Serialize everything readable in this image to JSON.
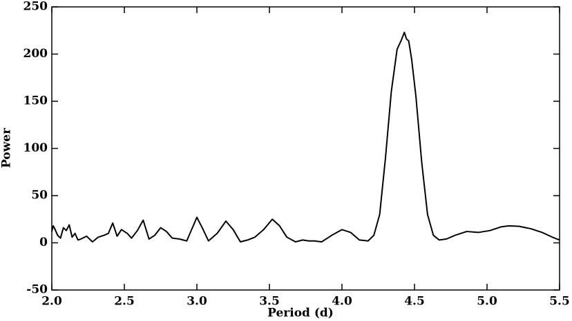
{
  "chart_data": {
    "type": "line",
    "xlabel": "Period (d)",
    "ylabel": "Power",
    "x": [
      2.0,
      2.01,
      2.02,
      2.04,
      2.06,
      2.08,
      2.1,
      2.12,
      2.14,
      2.16,
      2.18,
      2.2,
      2.24,
      2.28,
      2.32,
      2.36,
      2.39,
      2.42,
      2.45,
      2.48,
      2.52,
      2.55,
      2.59,
      2.63,
      2.67,
      2.71,
      2.75,
      2.79,
      2.83,
      2.88,
      2.93,
      3.0,
      3.04,
      3.08,
      3.14,
      3.2,
      3.25,
      3.3,
      3.35,
      3.4,
      3.46,
      3.52,
      3.57,
      3.62,
      3.68,
      3.73,
      3.77,
      3.81,
      3.86,
      3.93,
      4.0,
      4.06,
      4.12,
      4.18,
      4.22,
      4.26,
      4.3,
      4.34,
      4.38,
      4.41,
      4.43,
      4.445,
      4.46,
      4.48,
      4.51,
      4.55,
      4.59,
      4.63,
      4.67,
      4.72,
      4.78,
      4.86,
      4.94,
      5.02,
      5.1,
      5.15,
      5.22,
      5.3,
      5.38,
      5.45,
      5.5
    ],
    "series": [
      {
        "color": "#000000",
        "values": [
          12,
          18,
          15,
          8,
          5,
          16,
          13,
          19,
          6,
          10,
          3,
          4,
          7,
          1,
          6,
          8,
          10,
          21,
          7,
          14,
          10,
          5,
          13,
          24,
          4,
          8,
          16,
          12,
          5,
          4,
          2,
          27,
          15,
          2,
          10,
          23,
          14,
          1,
          3,
          6,
          14,
          25,
          18,
          6,
          1,
          3,
          2,
          2,
          1,
          8,
          14,
          11,
          3,
          2,
          8,
          30,
          90,
          160,
          205,
          215,
          223,
          216,
          214,
          195,
          155,
          85,
          30,
          8,
          3,
          4,
          8,
          12,
          11,
          13,
          17,
          18,
          17.5,
          15,
          11,
          6,
          3
        ]
      }
    ],
    "xlim": [
      2.0,
      5.5
    ],
    "xticks": [
      {
        "value": 2.0,
        "label": "2.0"
      },
      {
        "value": 2.5,
        "label": "2.5"
      },
      {
        "value": 3.0,
        "label": "3.0"
      },
      {
        "value": 3.5,
        "label": "3.5"
      },
      {
        "value": 4.0,
        "label": "4.0"
      },
      {
        "value": 4.5,
        "label": "4.5"
      },
      {
        "value": 5.0,
        "label": "5.0"
      },
      {
        "value": 5.5,
        "label": "5.5"
      }
    ],
    "ylim": [
      -50,
      250
    ],
    "yticks": [
      -50,
      0,
      50,
      100,
      150,
      200,
      250
    ]
  }
}
